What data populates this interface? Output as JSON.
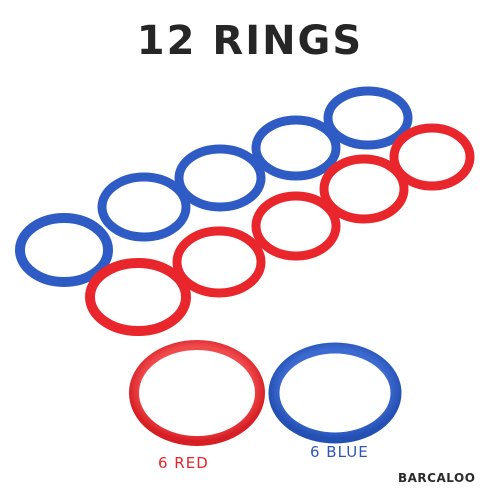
{
  "title": "12 RINGS",
  "labels": {
    "red": "6 RED",
    "blue": "6 BLUE"
  },
  "brand": "BARCALOO",
  "colors": {
    "red": "#e8262b",
    "blue": "#2f5cc4",
    "title": "#262626",
    "background": "#ffffff"
  },
  "counts": {
    "red_rings": 6,
    "blue_rings": 6
  }
}
